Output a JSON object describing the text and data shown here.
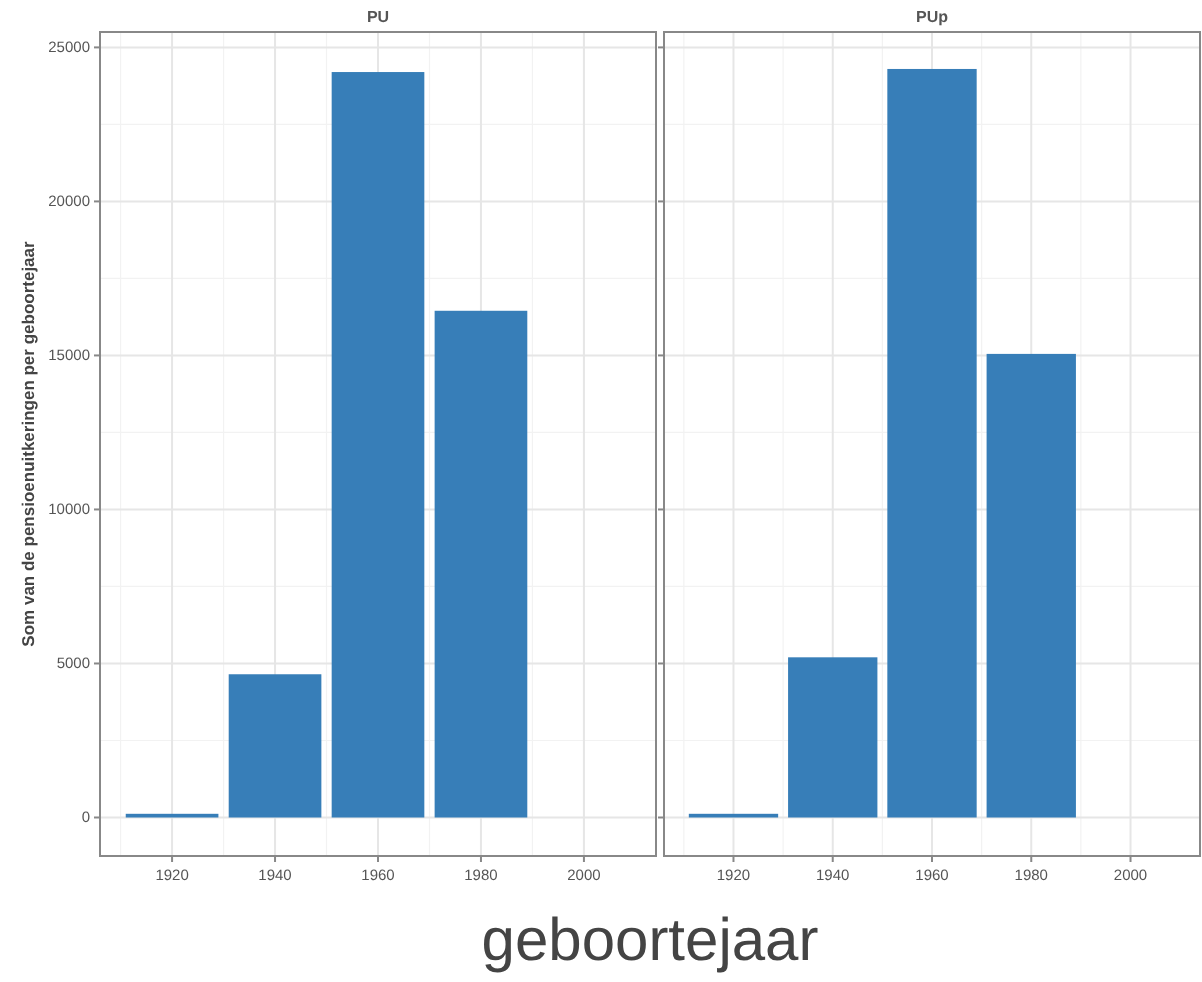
{
  "chart_data": [
    {
      "type": "bar",
      "title": "PU",
      "xlabel": "geboortejaar",
      "ylabel": "Som van de pensioenuitkeringen per geboortejaar",
      "x": [
        1920,
        1940,
        1960,
        1980
      ],
      "values": [
        120,
        4650,
        24200,
        16450
      ],
      "color": "#377eb8",
      "xlim": [
        1906,
        2014
      ],
      "xticks": [
        1920,
        1940,
        1960,
        1980,
        2000
      ],
      "ylim": [
        -1250,
        25500
      ],
      "yticks": [
        0,
        5000,
        10000,
        15000,
        20000,
        25000
      ],
      "grid": true
    },
    {
      "type": "bar",
      "title": "PUp",
      "x": [
        1920,
        1940,
        1960,
        1980
      ],
      "values": [
        120,
        5200,
        24300,
        15050
      ],
      "color": "#377eb8",
      "xlim": [
        1906,
        2014
      ],
      "xticks": [
        1920,
        1940,
        1960,
        1980,
        2000
      ],
      "ylim": [
        -1250,
        25500
      ],
      "yticks": [
        0,
        5000,
        10000,
        15000,
        20000,
        25000
      ],
      "grid": true,
      "tick_labels": "x"
    }
  ]
}
